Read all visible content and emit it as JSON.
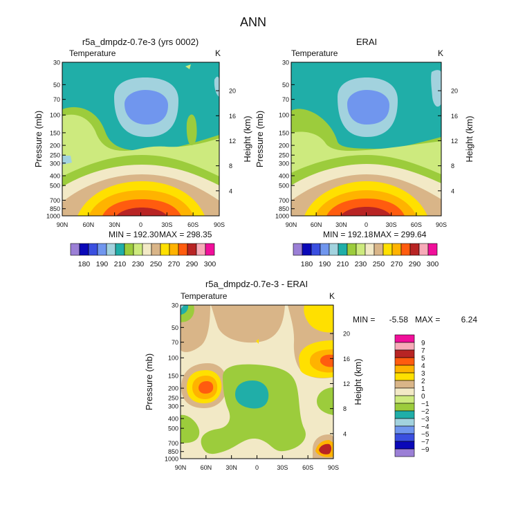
{
  "figure_title": "ANN",
  "colors": {
    "abs_palette": [
      "#9b7fd6",
      "#0a08b8",
      "#3a4fe0",
      "#7096ee",
      "#a2d2de",
      "#20aea8",
      "#9ccc3c",
      "#cdea7e",
      "#f2e9c6",
      "#d9b588",
      "#ffe000",
      "#ffb300",
      "#ff5c0f",
      "#b82424",
      "#f7aab8",
      "#f00f9a"
    ],
    "diff_palette": [
      "#9b7fd6",
      "#0a08b8",
      "#3a4fe0",
      "#7096ee",
      "#a2d2de",
      "#20aea8",
      "#9ccc3c",
      "#cdea7e",
      "#f2e9c6",
      "#d9b588",
      "#ffe000",
      "#ffb300",
      "#ff5c0f",
      "#b82424",
      "#f7aab8",
      "#f00f9a"
    ]
  },
  "chart_data": [
    {
      "type": "heatmap",
      "title": "r5a_dmpdz-0.7e-3 (yrs 0002)",
      "subtitle_left": "Temperature",
      "subtitle_right": "K",
      "ylabel": "Pressure (mb)",
      "ylabel_right": "Height (km)",
      "pressure_ticks": [
        "30",
        "50",
        "70",
        "100",
        "150",
        "200",
        "250",
        "300",
        "400",
        "500",
        "700",
        "850",
        "1000"
      ],
      "height_ticks": [
        "20",
        "16",
        "12",
        "8",
        "4"
      ],
      "x_ticks": [
        "90N",
        "60N",
        "30N",
        "0",
        "30S",
        "60S",
        "90S"
      ],
      "min_text": "MIN = 192.30",
      "max_text": "MAX = 298.35",
      "levels": [
        "180",
        "190",
        "200",
        "210",
        "220",
        "230",
        "240",
        "250",
        "260",
        "270",
        "280",
        "290",
        "300"
      ],
      "level_labels": [
        "180",
        "190",
        "210",
        "230",
        "250",
        "270",
        "290",
        "300"
      ],
      "values_min": 192.3,
      "values_max": 298.35
    },
    {
      "type": "heatmap",
      "title": "ERAI",
      "subtitle_left": "Temperature",
      "subtitle_right": "K",
      "ylabel": "Pressure (mb)",
      "ylabel_right": "Height (km)",
      "pressure_ticks": [
        "30",
        "50",
        "70",
        "100",
        "150",
        "200",
        "250",
        "300",
        "400",
        "500",
        "700",
        "850",
        "1000"
      ],
      "height_ticks": [
        "20",
        "16",
        "12",
        "8",
        "4"
      ],
      "x_ticks": [
        "90N",
        "60N",
        "30N",
        "0",
        "30S",
        "60S",
        "90S"
      ],
      "min_text": "MIN = 192.18",
      "max_text": "MAX = 299.64",
      "level_labels": [
        "180",
        "190",
        "210",
        "230",
        "250",
        "270",
        "290",
        "300"
      ],
      "values_min": 192.18,
      "values_max": 299.64
    },
    {
      "type": "heatmap",
      "title": "r5a_dmpdz-0.7e-3 - ERAI",
      "subtitle_left": "Temperature",
      "subtitle_right": "K",
      "ylabel": "Pressure (mb)",
      "ylabel_right": "Height (km)",
      "pressure_ticks": [
        "30",
        "50",
        "70",
        "100",
        "150",
        "200",
        "250",
        "300",
        "400",
        "500",
        "700",
        "850",
        "1000"
      ],
      "height_ticks": [
        "20",
        "16",
        "12",
        "8",
        "4"
      ],
      "x_ticks": [
        "90N",
        "60N",
        "30N",
        "0",
        "30S",
        "60S",
        "90S"
      ],
      "min_text": "MIN =",
      "min_value": "-5.58",
      "max_text": "MAX =",
      "max_value": "6.24",
      "level_labels": [
        "9",
        "7",
        "5",
        "4",
        "3",
        "2",
        "1",
        "0",
        "−1",
        "−2",
        "−3",
        "−4",
        "−5",
        "−7",
        "−9"
      ],
      "values_min": -5.58,
      "values_max": 6.24
    }
  ]
}
